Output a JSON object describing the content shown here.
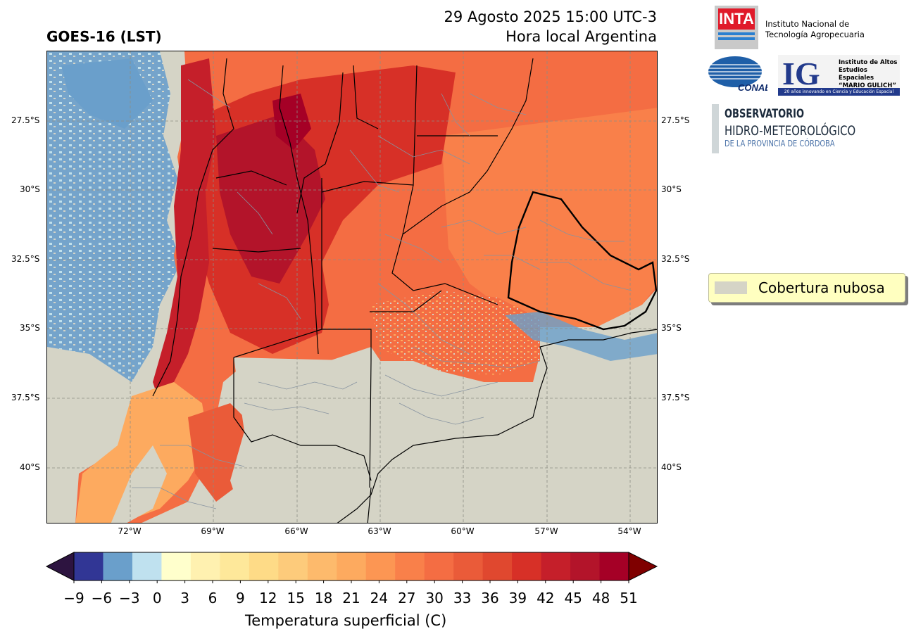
{
  "header": {
    "title": "GOES-16 (LST)",
    "date_time": "29 Agosto 2025 15:00 UTC-3",
    "local_time_label": "Hora local Argentina"
  },
  "map": {
    "latitude_labels": [
      "27.5°S",
      "30°S",
      "32.5°S",
      "35°S",
      "37.5°S",
      "40°S"
    ],
    "longitude_labels": [
      "72°W",
      "69°W",
      "66°W",
      "63°W",
      "60°W",
      "57°W",
      "54°W"
    ],
    "extent": {
      "lon_min": -75,
      "lon_max": -53,
      "lat_min": -42,
      "lat_max": -25
    },
    "gridlines": true,
    "cloud_color": "#d5d4c6"
  },
  "legend": {
    "label": "Cobertura nubosa",
    "color": "#d5d4c6",
    "placement": "right-middle"
  },
  "colorbar": {
    "label": "Temperatura superficial (C)",
    "ticks": [
      "−9",
      "−6",
      "−3",
      "0",
      "3",
      "6",
      "9",
      "12",
      "15",
      "18",
      "21",
      "24",
      "27",
      "30",
      "33",
      "36",
      "39",
      "42",
      "45",
      "48",
      "51"
    ],
    "min": -9,
    "max": 51,
    "step": 3,
    "colors": [
      "#313695",
      "#6a9fcb",
      "#bfe1ef",
      "#ffffcc",
      "#fff1b0",
      "#fee89a",
      "#fedb87",
      "#fdcb7b",
      "#fdba6c",
      "#fdaa5f",
      "#fc9653",
      "#f9804a",
      "#f46d43",
      "#ea5b39",
      "#e0482f",
      "#d73027",
      "#c51f2a",
      "#b3142a",
      "#a50026"
    ],
    "under_color": "#2d1440",
    "over_color": "#7f0000"
  },
  "logos": {
    "inta_mark": "INTA",
    "inta_name_line1": "Instituto Nacional de",
    "inta_name_line2": "Tecnología Agropecuaria",
    "conae_mark": "CONAE",
    "ig_mark": "IG",
    "ig_name_line1": "Instituto de Altos",
    "ig_name_line2": "Estudios Espaciales",
    "ig_name_line3": "“MARIO GULICH”",
    "ig_tagline": "20 años innovando en Ciencia y Educación Espacial",
    "obs_line1": "OBSERVATORIO",
    "obs_line2": "HIDRO-METEOROLÓGICO",
    "obs_line3": "DE LA PROVINCIA DE CÓRDOBA"
  }
}
